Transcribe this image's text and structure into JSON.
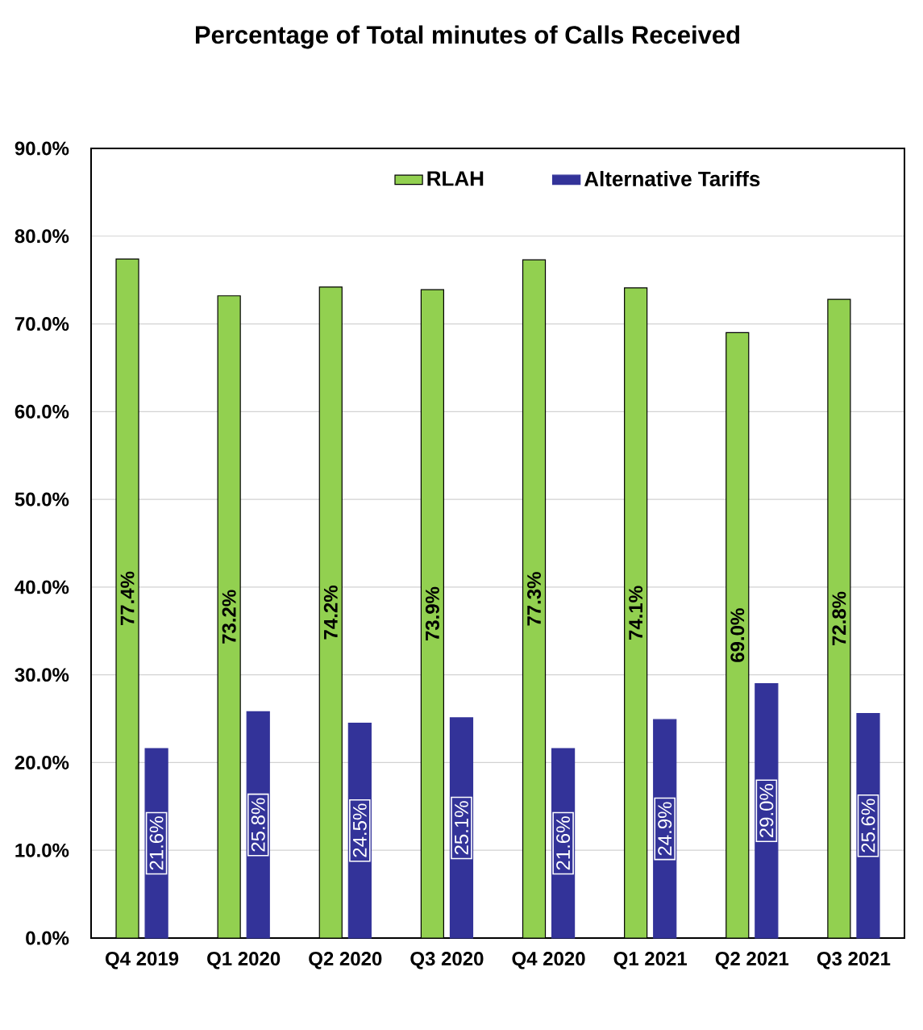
{
  "chart_data": {
    "type": "bar",
    "title": "Percentage of Total minutes of Calls Received",
    "categories": [
      "Q4 2019",
      "Q1 2020",
      "Q2 2020",
      "Q3 2020",
      "Q4 2020",
      "Q1 2021",
      "Q2 2021",
      "Q3 2021"
    ],
    "series": [
      {
        "name": "RLAH",
        "color": "#92d050",
        "values": [
          77.4,
          73.2,
          74.2,
          73.9,
          77.3,
          74.1,
          69.0,
          72.8
        ],
        "value_labels": [
          "77.4%",
          "73.2%",
          "74.2%",
          "73.9%",
          "77.3%",
          "74.1%",
          "69.0%",
          "72.8%"
        ]
      },
      {
        "name": "Alternative Tariffs",
        "color": "#333399",
        "values": [
          21.6,
          25.8,
          24.5,
          25.1,
          21.6,
          24.9,
          29.0,
          25.6
        ],
        "value_labels": [
          "21.6%",
          "25.8%",
          "24.5%",
          "25.1%",
          "21.6%",
          "24.9%",
          "29.0%",
          "25.6%"
        ]
      }
    ],
    "ylim": [
      0,
      90
    ],
    "yticks": [
      {
        "value": 0,
        "label": "0.0%"
      },
      {
        "value": 10,
        "label": "10.0%"
      },
      {
        "value": 20,
        "label": "20.0%"
      },
      {
        "value": 30,
        "label": "30.0%"
      },
      {
        "value": 40,
        "label": "40.0%"
      },
      {
        "value": 50,
        "label": "50.0%"
      },
      {
        "value": 60,
        "label": "60.0%"
      },
      {
        "value": 70,
        "label": "70.0%"
      },
      {
        "value": 80,
        "label": "80.0%"
      },
      {
        "value": 90,
        "label": "90.0%"
      }
    ],
    "grid": "y",
    "legend": "top"
  }
}
